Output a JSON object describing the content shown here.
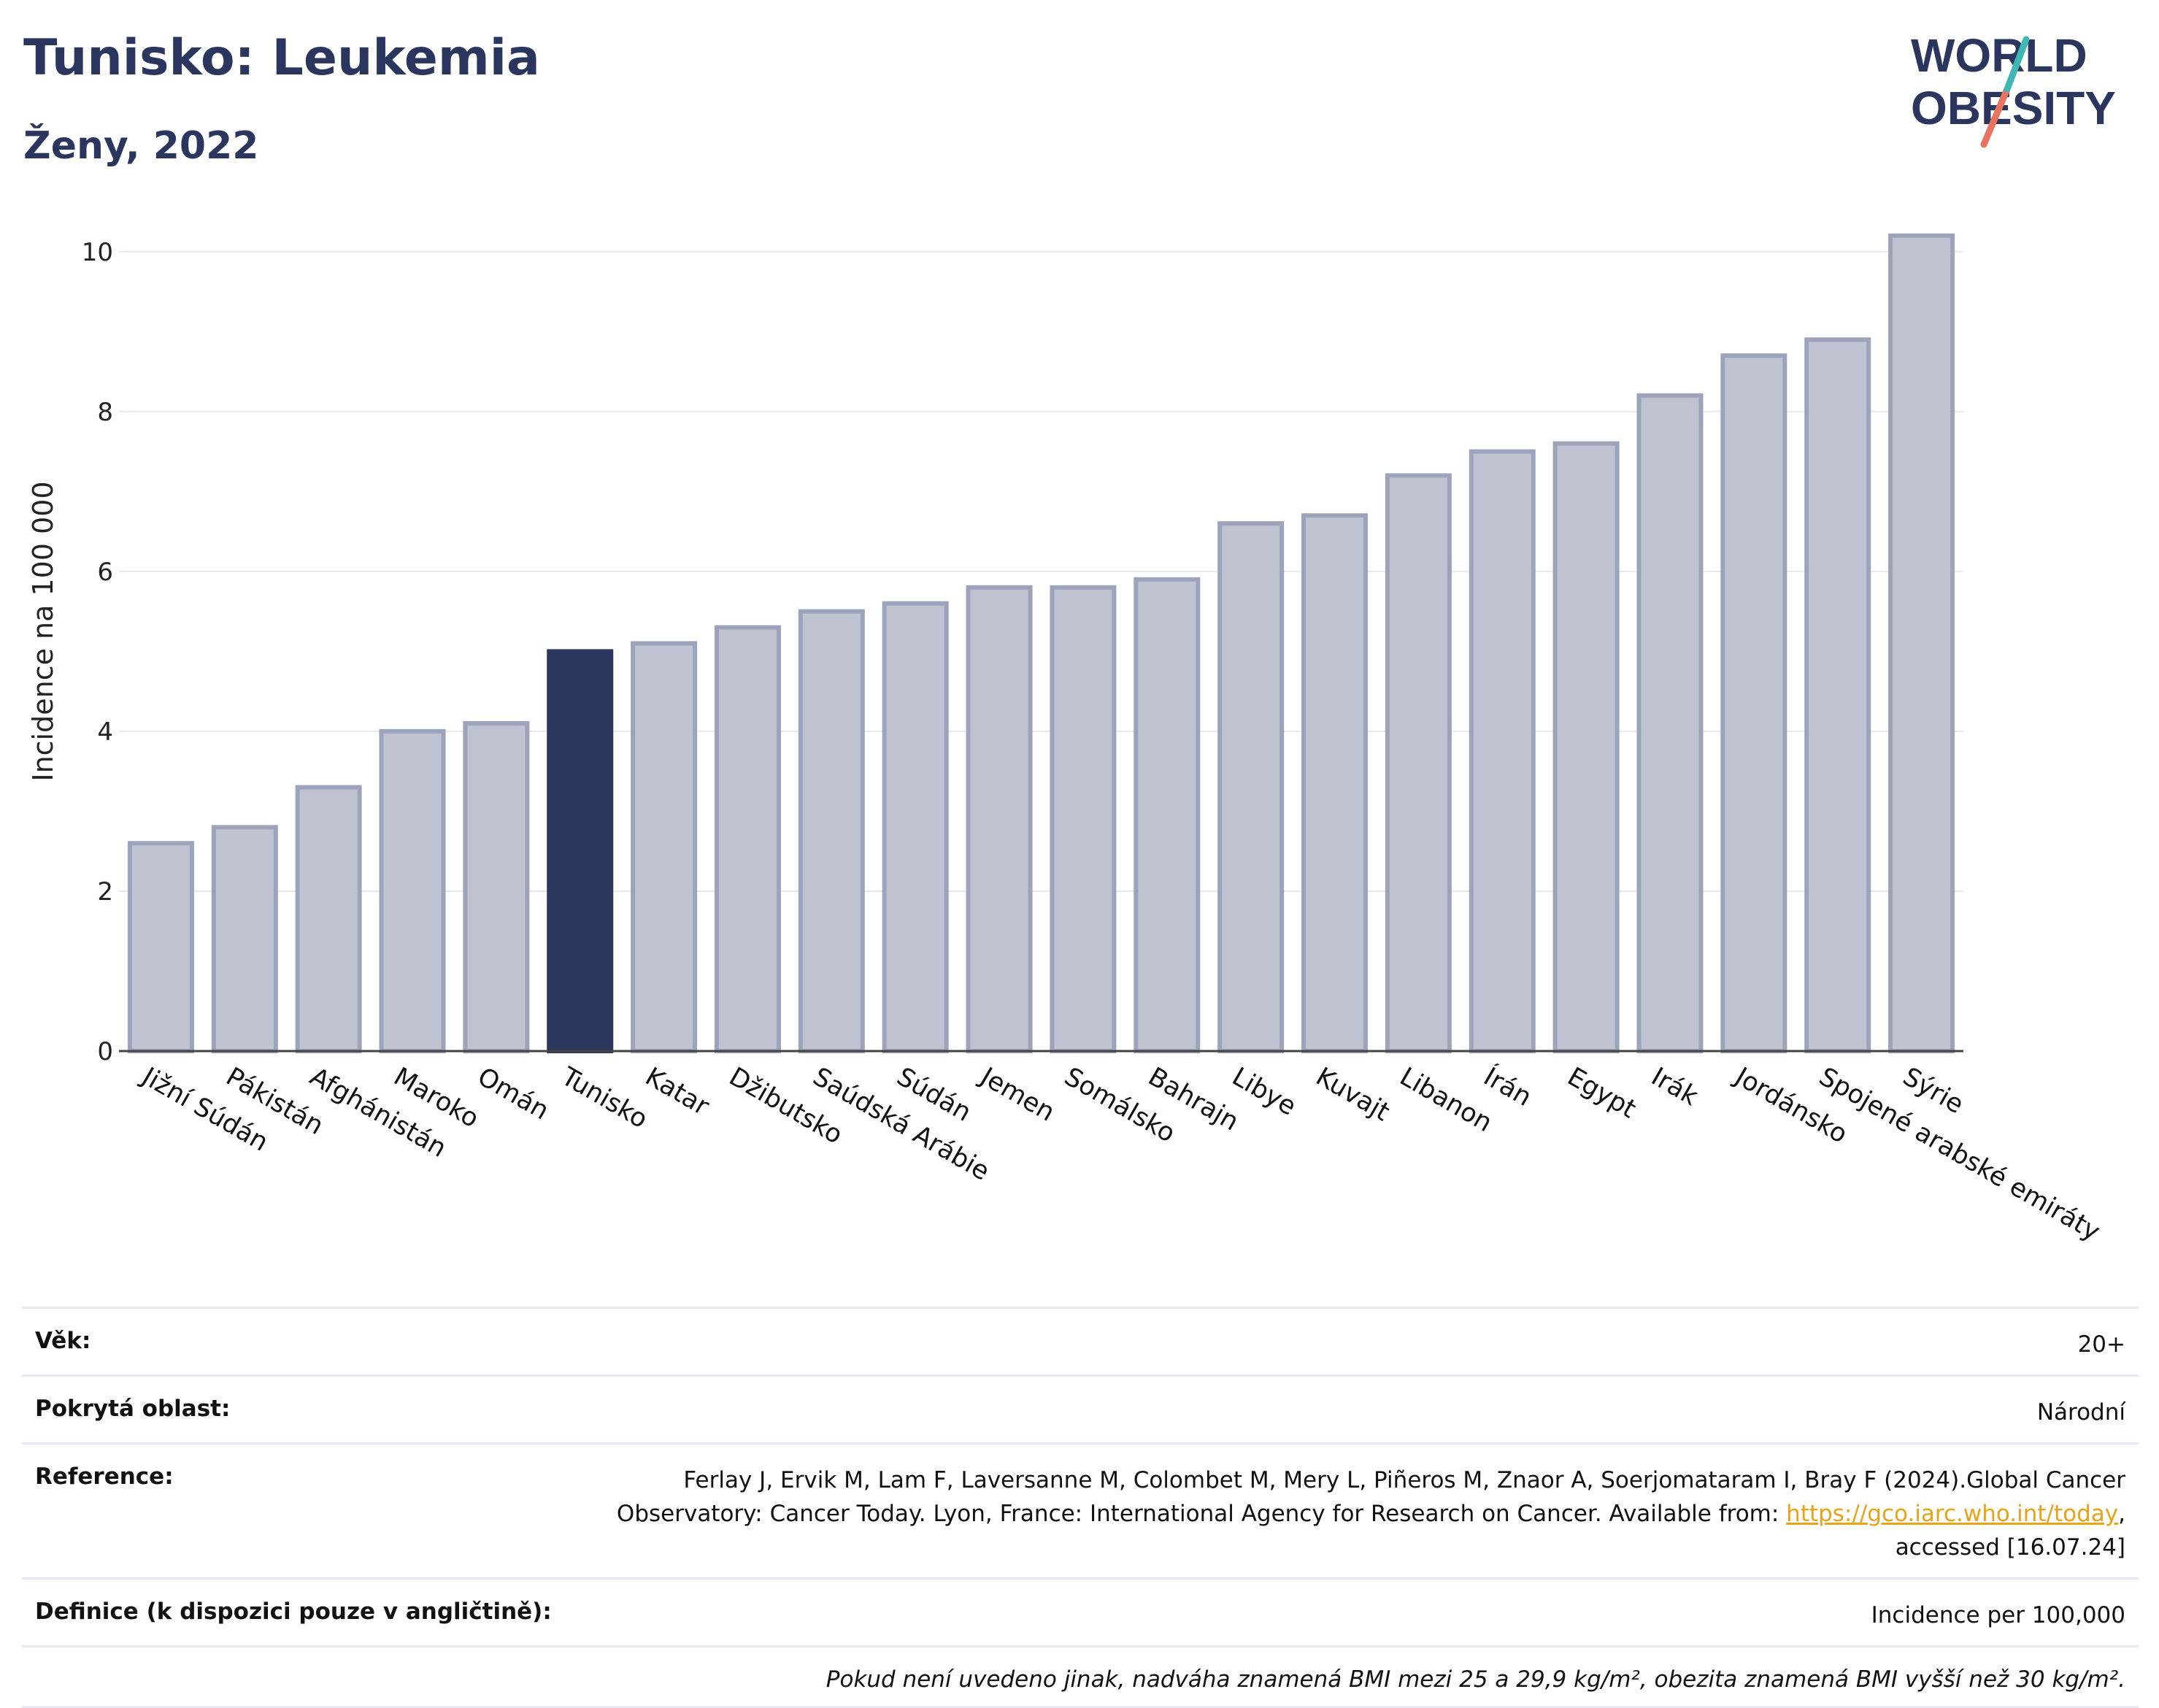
{
  "header": {
    "title": "Tunisko: Leukemia",
    "subtitle": "Ženy, 2022"
  },
  "logo": {
    "line1": "WORLD",
    "line2": "OBESITY"
  },
  "chart_data": {
    "type": "bar",
    "ylabel": "Incidence na 100 000",
    "ylim": [
      0,
      10.5
    ],
    "yticks": [
      0,
      2,
      4,
      6,
      8,
      10
    ],
    "grid": true,
    "highlight": "Tunisko",
    "colors": {
      "bar": "#bfc2d0",
      "bar_border": "#9da3bb",
      "highlight": "#2b365f",
      "grid": "#e6e8ee"
    },
    "categories": [
      "Jižní Súdán",
      "Pákistán",
      "Afghánistán",
      "Maroko",
      "Omán",
      "Tunisko",
      "Katar",
      "Džibutsko",
      "Saúdská Arábie",
      "Súdán",
      "Jemen",
      "Somálsko",
      "Bahrajn",
      "Libye",
      "Kuvajt",
      "Libanon",
      "Írán",
      "Egypt",
      "Irák",
      "Jordánsko",
      "Spojené arabské emiráty",
      "Sýrie"
    ],
    "values": [
      2.6,
      2.8,
      3.3,
      4.0,
      4.1,
      5.0,
      5.1,
      5.3,
      5.5,
      5.6,
      5.8,
      5.8,
      5.9,
      6.6,
      6.7,
      7.2,
      7.5,
      7.6,
      8.2,
      8.7,
      8.9,
      10.2
    ]
  },
  "info": {
    "age_label": "Věk:",
    "age_value": "20+",
    "coverage_label": "Pokrytá oblast:",
    "coverage_value": "Národní",
    "reference_label": "Reference:",
    "reference_text_1": "Ferlay J, Ervik M, Lam F, Laversanne M, Colombet M, Mery L, Piñeros M, Znaor A, Soerjomataram I, Bray F (2024).Global Cancer Observatory: Cancer Today. Lyon, France: International Agency for Research on Cancer. Available from: ",
    "reference_link": "https://gco.iarc.who.int/today",
    "reference_text_2": ", accessed [16.07.24]",
    "definition_label": "Definice (k dispozici pouze v angličtině):",
    "definition_value": "Incidence per 100,000",
    "note": "Pokud není uvedeno jinak, nadváha znamená BMI mezi 25 a 29,9 kg/m², obezita znamená BMI vyšší než 30 kg/m²."
  }
}
